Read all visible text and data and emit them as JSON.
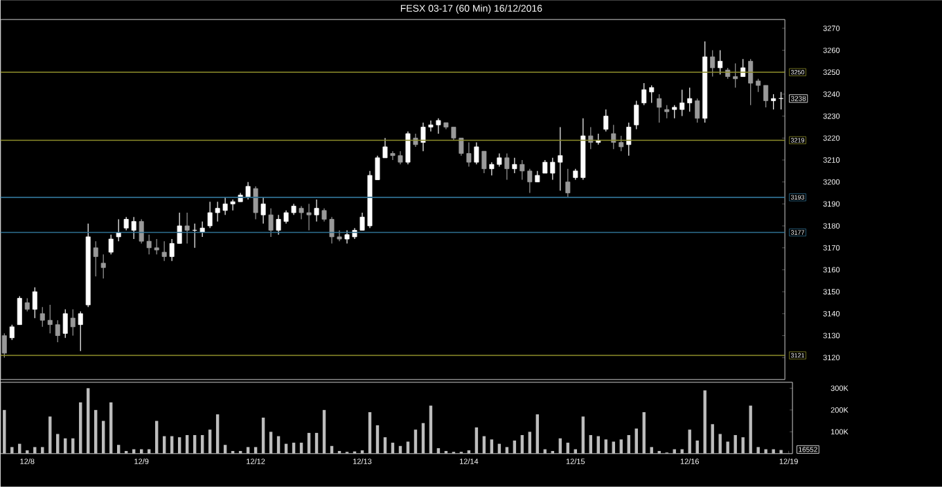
{
  "chart_data": [
    {
      "type": "candlestick",
      "title": "FESX 03-17 (60 Min) 16/12/2016",
      "categories": [
        null,
        null,
        null,
        null,
        null,
        null,
        null,
        null,
        null,
        null,
        null,
        null,
        null,
        null,
        null,
        null,
        null,
        null,
        null,
        null,
        null,
        null,
        null,
        null,
        null,
        null,
        null,
        null,
        null,
        null,
        null,
        null,
        null,
        null,
        null,
        null,
        null,
        null,
        null,
        null,
        null,
        null,
        null,
        null,
        null,
        null,
        null,
        null,
        null,
        null,
        null,
        null,
        null,
        null,
        null,
        null,
        null,
        null,
        null,
        null,
        null,
        null,
        null,
        null,
        null,
        null,
        null,
        null,
        null,
        null,
        null,
        null,
        null,
        null,
        null,
        null,
        null,
        null,
        null,
        null,
        null,
        null,
        null,
        null,
        null,
        null,
        null,
        null,
        null,
        null,
        null,
        null,
        null,
        null,
        null,
        null,
        null,
        null,
        null,
        null,
        null,
        null,
        null
      ],
      "ohlc": [
        [
          3130,
          3131,
          3120,
          3122
        ],
        [
          3129,
          3135,
          3128,
          3134
        ],
        [
          3135,
          3148,
          3135,
          3147
        ],
        [
          3145,
          3147,
          3141,
          3142
        ],
        [
          3142,
          3152,
          3138,
          3150
        ],
        [
          3140,
          3143,
          3134,
          3137
        ],
        [
          3137,
          3144,
          3131,
          3135
        ],
        [
          3135,
          3137,
          3127,
          3130
        ],
        [
          3131,
          3142,
          3129,
          3140
        ],
        [
          3138,
          3142,
          3130,
          3134
        ],
        [
          3135,
          3141,
          3123,
          3140
        ],
        [
          3144,
          3181,
          3143,
          3175
        ],
        [
          3170,
          3173,
          3157,
          3166
        ],
        [
          3163,
          3167,
          3156,
          3161
        ],
        [
          3168,
          3176,
          3167,
          3174
        ],
        [
          3175,
          3183,
          3173,
          3177
        ],
        [
          3179,
          3184,
          3178,
          3183
        ],
        [
          3178,
          3184,
          3174,
          3182
        ],
        [
          3182,
          3183,
          3172,
          3173
        ],
        [
          3173,
          3176,
          3167,
          3170
        ],
        [
          3170,
          3174,
          3167,
          3169
        ],
        [
          3168,
          3173,
          3164,
          3166
        ],
        [
          3166,
          3174,
          3164,
          3172
        ],
        [
          3172,
          3186,
          3172,
          3180
        ],
        [
          3180,
          3186,
          3172,
          3178
        ],
        [
          3178,
          3181,
          3170,
          3178
        ],
        [
          3177,
          3182,
          3175,
          3179
        ],
        [
          3180,
          3191,
          3179,
          3186
        ],
        [
          3186,
          3191,
          3182,
          3188
        ],
        [
          3187,
          3193,
          3185,
          3190
        ],
        [
          3190,
          3192,
          3187,
          3191
        ],
        [
          3191,
          3195,
          3191,
          3194
        ],
        [
          3193,
          3200,
          3192,
          3198
        ],
        [
          3197,
          3198,
          3183,
          3186
        ],
        [
          3185,
          3193,
          3181,
          3190
        ],
        [
          3185,
          3188,
          3175,
          3178
        ],
        [
          3178,
          3185,
          3176,
          3183
        ],
        [
          3182,
          3187,
          3181,
          3186
        ],
        [
          3186,
          3190,
          3185,
          3189
        ],
        [
          3188,
          3189,
          3183,
          3186
        ],
        [
          3186,
          3190,
          3178,
          3185
        ],
        [
          3185,
          3192,
          3182,
          3188
        ],
        [
          3187,
          3188,
          3182,
          3183
        ],
        [
          3183,
          3184,
          3172,
          3175
        ],
        [
          3175,
          3178,
          3173,
          3174
        ],
        [
          3174,
          3178,
          3172,
          3176
        ],
        [
          3175,
          3179,
          3174,
          3178
        ],
        [
          3178,
          3186,
          3178,
          3184
        ],
        [
          3180,
          3205,
          3179,
          3203
        ],
        [
          3201,
          3212,
          3201,
          3211
        ],
        [
          3211,
          3220,
          3211,
          3216
        ],
        [
          3213,
          3214,
          3210,
          3212
        ],
        [
          3212,
          3214,
          3208,
          3209
        ],
        [
          3209,
          3223,
          3208,
          3222
        ],
        [
          3220,
          3222,
          3216,
          3217
        ],
        [
          3218,
          3227,
          3214,
          3225
        ],
        [
          3225,
          3228,
          3223,
          3226
        ],
        [
          3226,
          3229,
          3222,
          3228
        ],
        [
          3227,
          3227,
          3224,
          3225
        ],
        [
          3225,
          3225,
          3219,
          3220
        ],
        [
          3220,
          3220,
          3212,
          3213
        ],
        [
          3213,
          3218,
          3207,
          3209
        ],
        [
          3209,
          3218,
          3208,
          3216
        ],
        [
          3214,
          3214,
          3204,
          3206
        ],
        [
          3206,
          3209,
          3203,
          3208
        ],
        [
          3208,
          3213,
          3207,
          3211
        ],
        [
          3211,
          3213,
          3201,
          3206
        ],
        [
          3206,
          3211,
          3204,
          3208
        ],
        [
          3208,
          3210,
          3201,
          3205
        ],
        [
          3205,
          3206,
          3195,
          3200
        ],
        [
          3200,
          3205,
          3200,
          3203
        ],
        [
          3204,
          3210,
          3204,
          3209
        ],
        [
          3204,
          3211,
          3201,
          3209
        ],
        [
          3209,
          3225,
          3196,
          3212
        ],
        [
          3200,
          3206,
          3193,
          3195
        ],
        [
          3202,
          3206,
          3201,
          3205
        ],
        [
          3202,
          3229,
          3201,
          3221
        ],
        [
          3221,
          3225,
          3215,
          3218
        ],
        [
          3218,
          3222,
          3217,
          3219
        ],
        [
          3224,
          3233,
          3223,
          3230
        ],
        [
          3222,
          3226,
          3215,
          3218
        ],
        [
          3218,
          3221,
          3214,
          3216
        ],
        [
          3217,
          3227,
          3212,
          3225
        ],
        [
          3226,
          3237,
          3224,
          3235
        ],
        [
          3236,
          3245,
          3235,
          3242
        ],
        [
          3241,
          3244,
          3236,
          3243
        ],
        [
          3238,
          3240,
          3227,
          3234
        ],
        [
          3233,
          3235,
          3229,
          3232
        ],
        [
          3233,
          3235,
          3229,
          3234
        ],
        [
          3233,
          3242,
          3230,
          3236
        ],
        [
          3236,
          3243,
          3232,
          3238
        ],
        [
          3237,
          3238,
          3227,
          3229
        ],
        [
          3229,
          3264,
          3227,
          3257
        ],
        [
          3257,
          3260,
          3248,
          3252
        ],
        [
          3252,
          3260,
          3249,
          3255
        ],
        [
          3251,
          3252,
          3247,
          3248
        ],
        [
          3248,
          3254,
          3243,
          3247
        ],
        [
          3248,
          3256,
          3248,
          3252
        ],
        [
          3255,
          3256,
          3235,
          3245
        ],
        [
          3246,
          3247,
          3241,
          3244
        ],
        [
          3244,
          3244,
          3234,
          3237
        ],
        [
          3237,
          3240,
          3233,
          3238
        ],
        [
          3238,
          3241,
          3233,
          3238
        ]
      ],
      "ylim": [
        3110,
        3274
      ],
      "yticks": [
        3120,
        3130,
        3140,
        3150,
        3160,
        3170,
        3180,
        3190,
        3200,
        3210,
        3220,
        3230,
        3240,
        3250,
        3260,
        3270
      ],
      "tick_labels": "y",
      "ref_lines": [
        {
          "axis": "y",
          "value": 3250,
          "label": "3250",
          "color": "#8c8c2a"
        },
        {
          "axis": "y",
          "value": 3219,
          "label": "3219",
          "color": "#8c8c2a"
        },
        {
          "axis": "y",
          "value": 3193,
          "label": "3193",
          "color": "#2f6f91"
        },
        {
          "axis": "y",
          "value": 3177,
          "label": "3177",
          "color": "#2f6f91"
        },
        {
          "axis": "y",
          "value": 3121,
          "label": "3121",
          "color": "#8c8c2a"
        }
      ],
      "annotations": [
        "3238"
      ]
    },
    {
      "type": "bar",
      "color": "#bdbdbd",
      "categories": [
        null,
        null,
        null,
        "12/8",
        null,
        null,
        null,
        null,
        null,
        null,
        null,
        null,
        null,
        null,
        null,
        null,
        null,
        null,
        "12/9",
        null,
        null,
        null,
        null,
        null,
        null,
        null,
        null,
        null,
        null,
        null,
        null,
        null,
        null,
        "12/12",
        null,
        null,
        null,
        null,
        null,
        null,
        null,
        null,
        null,
        null,
        null,
        null,
        null,
        "12/13",
        null,
        null,
        null,
        null,
        null,
        null,
        null,
        null,
        null,
        null,
        null,
        null,
        null,
        "12/14",
        null,
        null,
        null,
        null,
        null,
        null,
        null,
        null,
        null,
        null,
        null,
        null,
        null,
        "12/15",
        null,
        null,
        null,
        null,
        null,
        null,
        null,
        null,
        null,
        null,
        null,
        null,
        null,
        null,
        "12/16",
        null,
        null,
        null,
        null,
        null,
        null,
        null,
        null,
        null,
        null,
        null,
        null,
        "12/19"
      ],
      "values": [
        200,
        30,
        45,
        15,
        30,
        30,
        170,
        90,
        70,
        70,
        235,
        300,
        200,
        150,
        235,
        40,
        12,
        20,
        20,
        20,
        150,
        80,
        80,
        75,
        85,
        85,
        85,
        110,
        180,
        40,
        12,
        12,
        30,
        30,
        165,
        100,
        80,
        45,
        50,
        50,
        95,
        95,
        200,
        35,
        12,
        8,
        10,
        15,
        190,
        130,
        75,
        50,
        35,
        55,
        110,
        140,
        220,
        25,
        12,
        8,
        8,
        15,
        120,
        80,
        65,
        45,
        30,
        60,
        85,
        100,
        180,
        20,
        12,
        70,
        50,
        20,
        170,
        85,
        80,
        65,
        55,
        65,
        85,
        115,
        190,
        30,
        12,
        5,
        20,
        20,
        110,
        60,
        290,
        135,
        90,
        55,
        85,
        75,
        220,
        30,
        20,
        20,
        16.552,
        null
      ],
      "ylim": [
        0,
        327
      ],
      "yticks": [
        {
          "value": 100,
          "label": "100K"
        },
        {
          "value": 200,
          "label": "200K"
        },
        {
          "value": 300,
          "label": "300K"
        }
      ],
      "annotations": [
        "16552"
      ]
    }
  ]
}
